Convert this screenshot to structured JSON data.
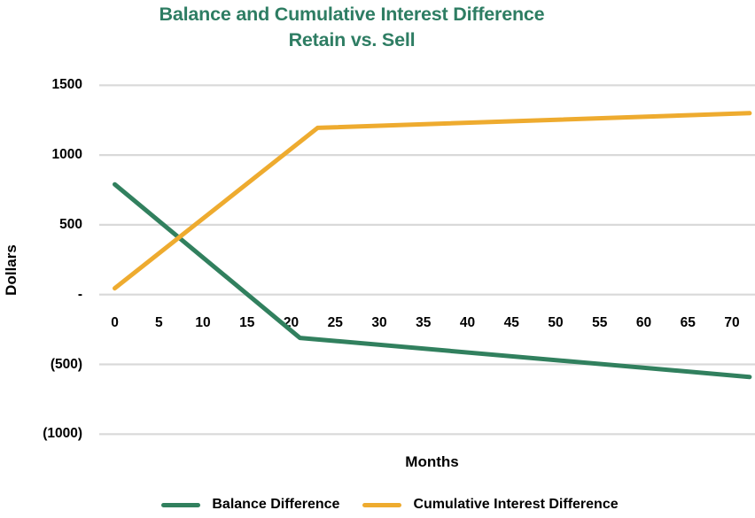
{
  "title": {
    "line1": "Balance and Cumulative Interest Difference",
    "line2": "Retain vs. Sell"
  },
  "colors": {
    "title": "#2e7d63",
    "grid": "#d9d9d9",
    "tick_text": "#000000",
    "balance_line": "#31805e",
    "interest_line": "#eeab2f"
  },
  "axes": {
    "y_label": "Dollars",
    "x_label": "Months",
    "y_ticks": [
      {
        "label": "1500",
        "value": 1500
      },
      {
        "label": "1000",
        "value": 1000
      },
      {
        "label": "500",
        "value": 500
      },
      {
        "label": "-",
        "value": 0
      },
      {
        "label": "(500)",
        "value": -500
      },
      {
        "label": "(1000)",
        "value": -1000
      }
    ],
    "x_ticks": [
      0,
      5,
      10,
      15,
      20,
      25,
      30,
      35,
      40,
      45,
      50,
      55,
      60,
      65,
      70
    ]
  },
  "legend": {
    "items": [
      {
        "label": "Balance Difference"
      },
      {
        "label": "Cumulative Interest Difference"
      }
    ]
  },
  "chart_data": {
    "type": "line",
    "title": "Balance and Cumulative Interest Difference Retain vs. Sell",
    "xlabel": "Months",
    "ylabel": "Dollars",
    "xlim": [
      0,
      72
    ],
    "ylim": [
      -1000,
      1500
    ],
    "y_tick_step": 500,
    "x_tick_step": 5,
    "grid": true,
    "legend_position": "bottom",
    "negative_number_format": "accounting-parentheses",
    "series": [
      {
        "name": "Balance Difference",
        "color": "#31805e",
        "points": [
          [
            0,
            790
          ],
          [
            21,
            -310
          ],
          [
            72,
            -590
          ]
        ]
      },
      {
        "name": "Cumulative Interest Difference",
        "color": "#eeab2f",
        "points": [
          [
            0,
            45
          ],
          [
            23,
            1195
          ],
          [
            72,
            1300
          ]
        ]
      }
    ]
  }
}
